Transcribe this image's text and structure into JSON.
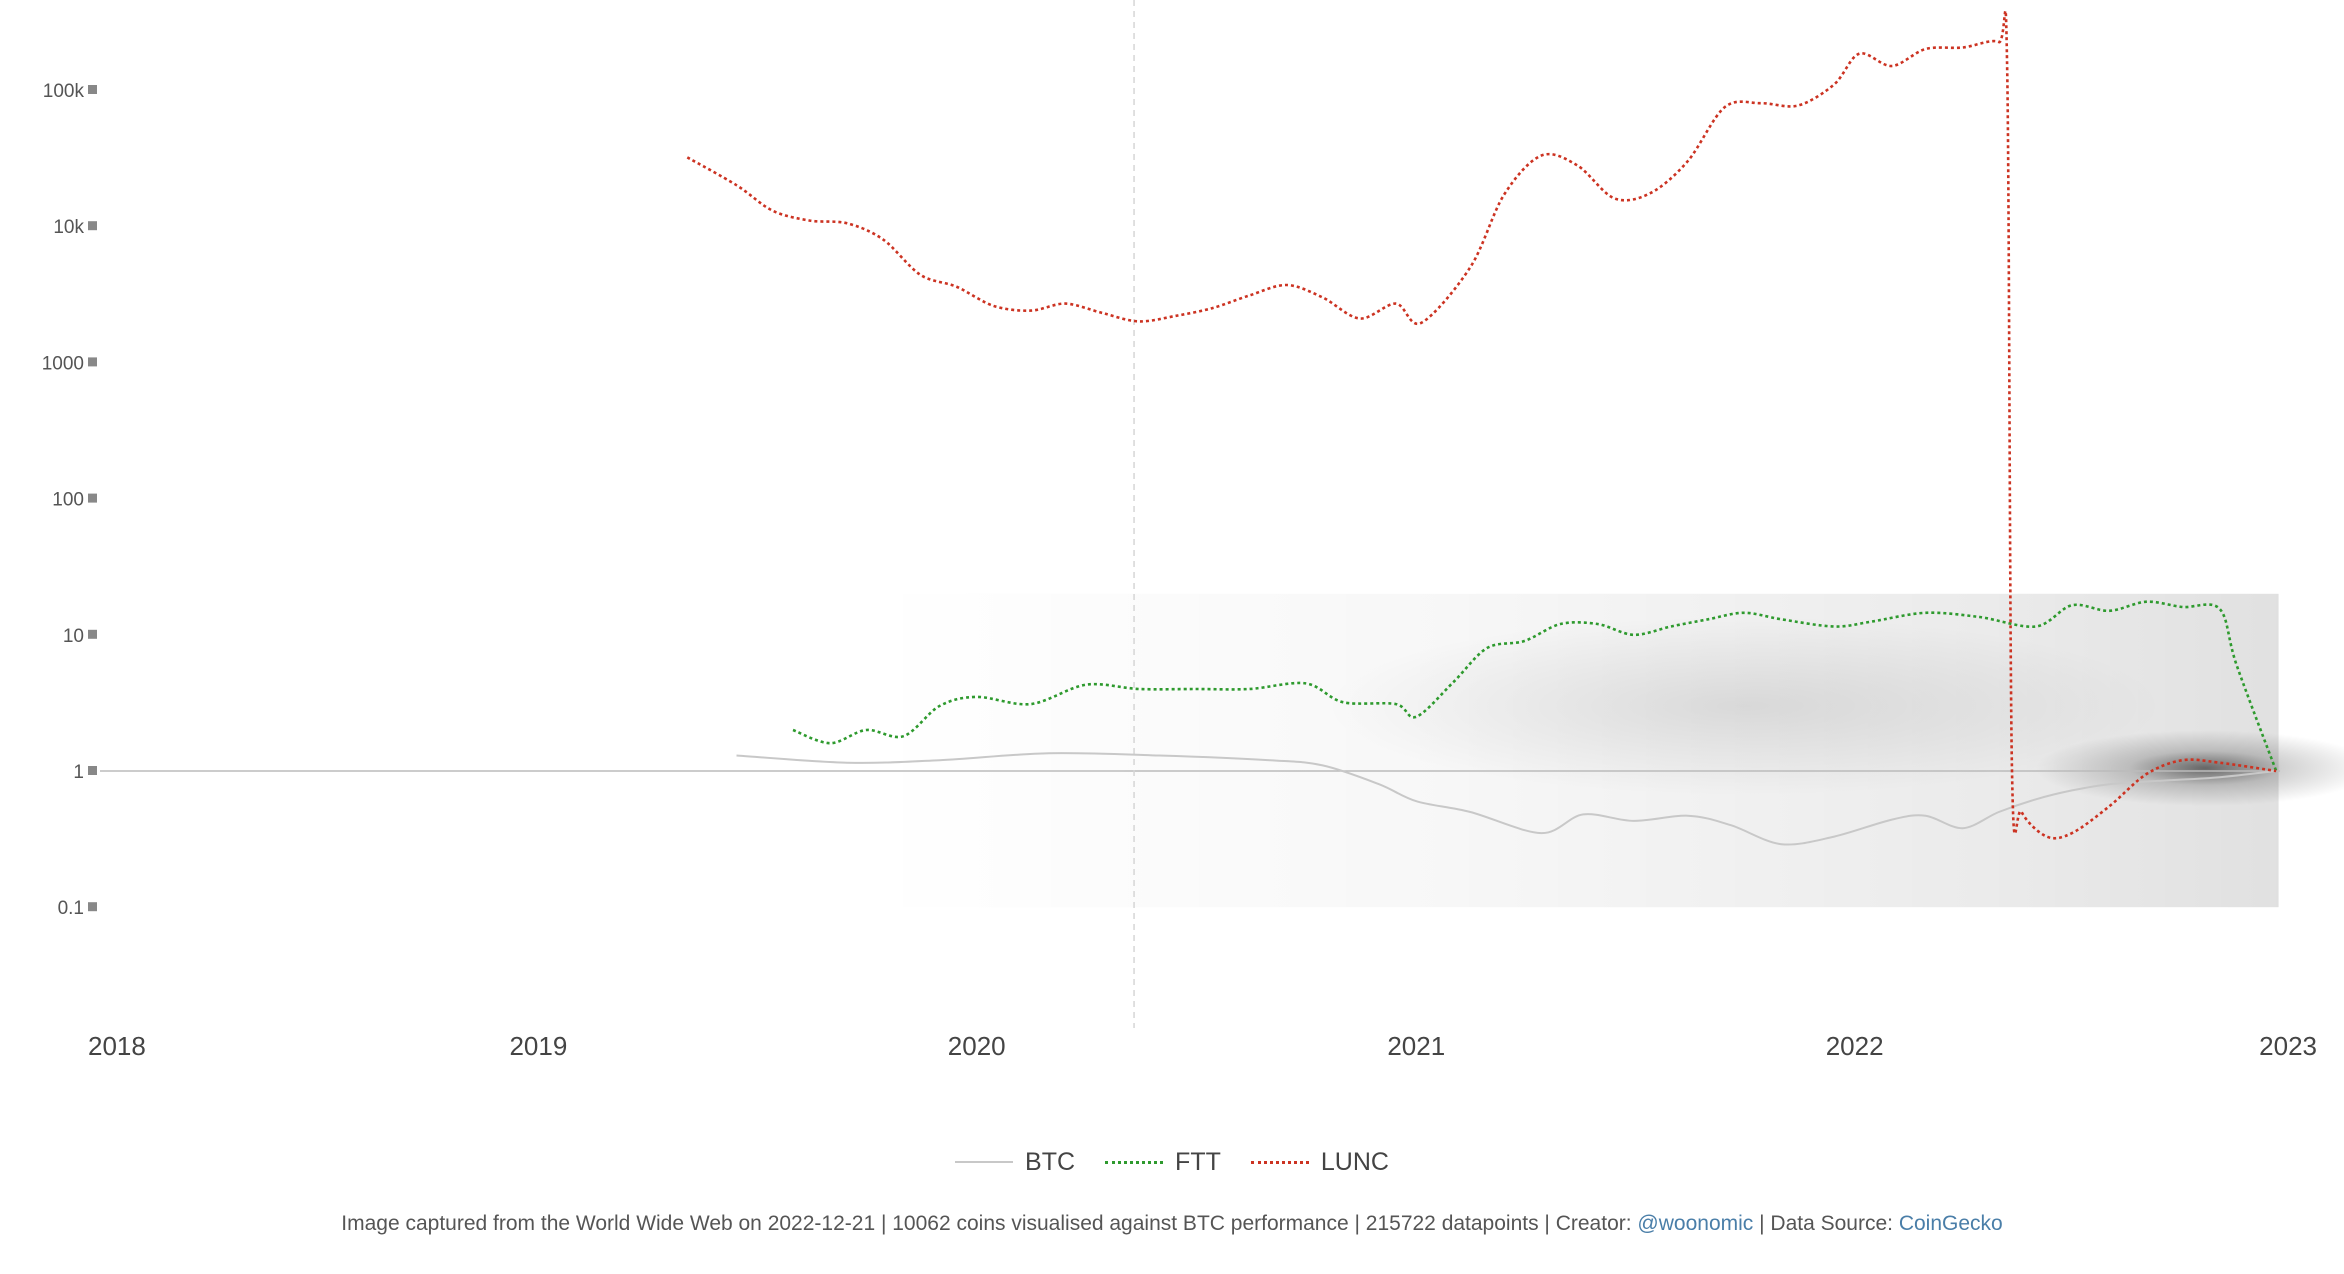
{
  "chart_data": {
    "type": "line",
    "yscale": "log",
    "ylim": [
      0.01,
      250000
    ],
    "xlim": [
      "2018-01-01",
      "2023-01-01"
    ],
    "grid": false,
    "reference_line": {
      "y": 1,
      "color": "#bbbbbb"
    },
    "marker_line": {
      "x": "2020-05-11",
      "style": "dashed"
    },
    "y_ticks": [
      {
        "value": 100000,
        "label": "100k"
      },
      {
        "value": 10000,
        "label": "10k"
      },
      {
        "value": 1000,
        "label": "1000"
      },
      {
        "value": 100,
        "label": "100"
      },
      {
        "value": 10,
        "label": "10"
      },
      {
        "value": 1,
        "label": "1"
      },
      {
        "value": 0.1,
        "label": "0.1"
      }
    ],
    "x_ticks": [
      {
        "value": "2018-01-01",
        "label": "2018"
      },
      {
        "value": "2019-01-01",
        "label": "2019"
      },
      {
        "value": "2020-01-01",
        "label": "2020"
      },
      {
        "value": "2021-01-01",
        "label": "2021"
      },
      {
        "value": "2022-01-01",
        "label": "2022"
      },
      {
        "value": "2023-01-01",
        "label": "2023"
      }
    ],
    "legend_position": "bottom-center",
    "series": [
      {
        "name": "BTC",
        "color": "#c8c8c8",
        "dash": "solid",
        "points": [
          [
            "2019-06-15",
            1.3
          ],
          [
            "2019-09-15",
            1.15
          ],
          [
            "2019-12-01",
            1.2
          ],
          [
            "2020-03-01",
            1.35
          ],
          [
            "2020-06-01",
            1.3
          ],
          [
            "2020-09-01",
            1.2
          ],
          [
            "2020-10-15",
            1.1
          ],
          [
            "2020-12-01",
            0.8
          ],
          [
            "2021-01-01",
            0.6
          ],
          [
            "2021-02-15",
            0.5
          ],
          [
            "2021-04-15",
            0.35
          ],
          [
            "2021-05-20",
            0.48
          ],
          [
            "2021-07-01",
            0.43
          ],
          [
            "2021-08-15",
            0.47
          ],
          [
            "2021-09-20",
            0.4
          ],
          [
            "2021-11-01",
            0.29
          ],
          [
            "2021-12-15",
            0.33
          ],
          [
            "2022-02-01",
            0.44
          ],
          [
            "2022-03-01",
            0.47
          ],
          [
            "2022-04-01",
            0.38
          ],
          [
            "2022-05-01",
            0.5
          ],
          [
            "2022-06-01",
            0.62
          ],
          [
            "2022-07-01",
            0.72
          ],
          [
            "2022-08-01",
            0.8
          ],
          [
            "2022-09-15",
            0.85
          ],
          [
            "2022-11-01",
            0.9
          ],
          [
            "2022-12-18",
            1.0
          ]
        ]
      },
      {
        "name": "FTT",
        "color": "#2e9a2e",
        "dash": "dotted",
        "points": [
          [
            "2019-08-01",
            2.0
          ],
          [
            "2019-09-01",
            1.6
          ],
          [
            "2019-10-01",
            2.0
          ],
          [
            "2019-11-01",
            1.8
          ],
          [
            "2019-12-01",
            3.0
          ],
          [
            "2020-01-01",
            3.5
          ],
          [
            "2020-02-15",
            3.1
          ],
          [
            "2020-04-01",
            4.3
          ],
          [
            "2020-05-15",
            4.0
          ],
          [
            "2020-07-01",
            4.0
          ],
          [
            "2020-08-15",
            4.0
          ],
          [
            "2020-10-01",
            4.4
          ],
          [
            "2020-11-01",
            3.2
          ],
          [
            "2020-12-15",
            3.1
          ],
          [
            "2021-01-01",
            2.5
          ],
          [
            "2021-02-01",
            4.5
          ],
          [
            "2021-03-01",
            8.0
          ],
          [
            "2021-04-01",
            9.0
          ],
          [
            "2021-05-01",
            12.0
          ],
          [
            "2021-06-01",
            12.0
          ],
          [
            "2021-07-01",
            10.0
          ],
          [
            "2021-08-01",
            11.5
          ],
          [
            "2021-09-01",
            13.0
          ],
          [
            "2021-10-01",
            14.5
          ],
          [
            "2021-11-01",
            13.0
          ],
          [
            "2021-12-15",
            11.5
          ],
          [
            "2022-01-15",
            12.5
          ],
          [
            "2022-03-01",
            14.5
          ],
          [
            "2022-04-15",
            13.5
          ],
          [
            "2022-06-01",
            11.5
          ],
          [
            "2022-07-01",
            16.5
          ],
          [
            "2022-08-01",
            15.0
          ],
          [
            "2022-09-01",
            17.5
          ],
          [
            "2022-10-01",
            16.0
          ],
          [
            "2022-11-01",
            15.5
          ],
          [
            "2022-11-15",
            6.0
          ],
          [
            "2022-12-18",
            1.0
          ]
        ]
      },
      {
        "name": "LUNC",
        "color": "#cc3322",
        "dash": "dotted",
        "points": [
          [
            "2019-05-05",
            32000
          ],
          [
            "2019-06-15",
            20000
          ],
          [
            "2019-07-15",
            13000
          ],
          [
            "2019-08-15",
            11000
          ],
          [
            "2019-09-15",
            10500
          ],
          [
            "2019-10-15",
            8000
          ],
          [
            "2019-11-15",
            4400
          ],
          [
            "2019-12-15",
            3600
          ],
          [
            "2020-01-15",
            2600
          ],
          [
            "2020-02-15",
            2400
          ],
          [
            "2020-03-15",
            2700
          ],
          [
            "2020-04-15",
            2300
          ],
          [
            "2020-05-15",
            2000
          ],
          [
            "2020-06-15",
            2200
          ],
          [
            "2020-07-15",
            2500
          ],
          [
            "2020-08-15",
            3100
          ],
          [
            "2020-09-15",
            3700
          ],
          [
            "2020-10-15",
            3000
          ],
          [
            "2020-11-15",
            2100
          ],
          [
            "2020-12-15",
            2700
          ],
          [
            "2021-01-05",
            1950
          ],
          [
            "2021-02-15",
            5000
          ],
          [
            "2021-03-15",
            17000
          ],
          [
            "2021-04-15",
            33000
          ],
          [
            "2021-05-15",
            28000
          ],
          [
            "2021-06-15",
            16000
          ],
          [
            "2021-07-15",
            17500
          ],
          [
            "2021-08-15",
            30000
          ],
          [
            "2021-09-15",
            75000
          ],
          [
            "2021-10-15",
            80000
          ],
          [
            "2021-11-15",
            77000
          ],
          [
            "2021-12-15",
            110000
          ],
          [
            "2022-01-05",
            185000
          ],
          [
            "2022-02-01",
            150000
          ],
          [
            "2022-03-01",
            200000
          ],
          [
            "2022-04-01",
            205000
          ],
          [
            "2022-05-01",
            225000
          ],
          [
            "2022-05-08",
            140000
          ],
          [
            "2022-05-12",
            1.0
          ],
          [
            "2022-05-20",
            0.5
          ],
          [
            "2022-06-10",
            0.33
          ],
          [
            "2022-07-01",
            0.35
          ],
          [
            "2022-08-01",
            0.55
          ],
          [
            "2022-09-01",
            0.95
          ],
          [
            "2022-10-01",
            1.2
          ],
          [
            "2022-11-01",
            1.15
          ],
          [
            "2022-12-18",
            1.0
          ]
        ]
      }
    ]
  },
  "caption": {
    "prefix": "Image captured from the World Wide Web on 2022-12-21 | 10062 coins visualised against BTC performance | 215722 datapoints | Creator: ",
    "creator": "@woonomic",
    "mid": " | Data Source: ",
    "source": "CoinGecko"
  }
}
